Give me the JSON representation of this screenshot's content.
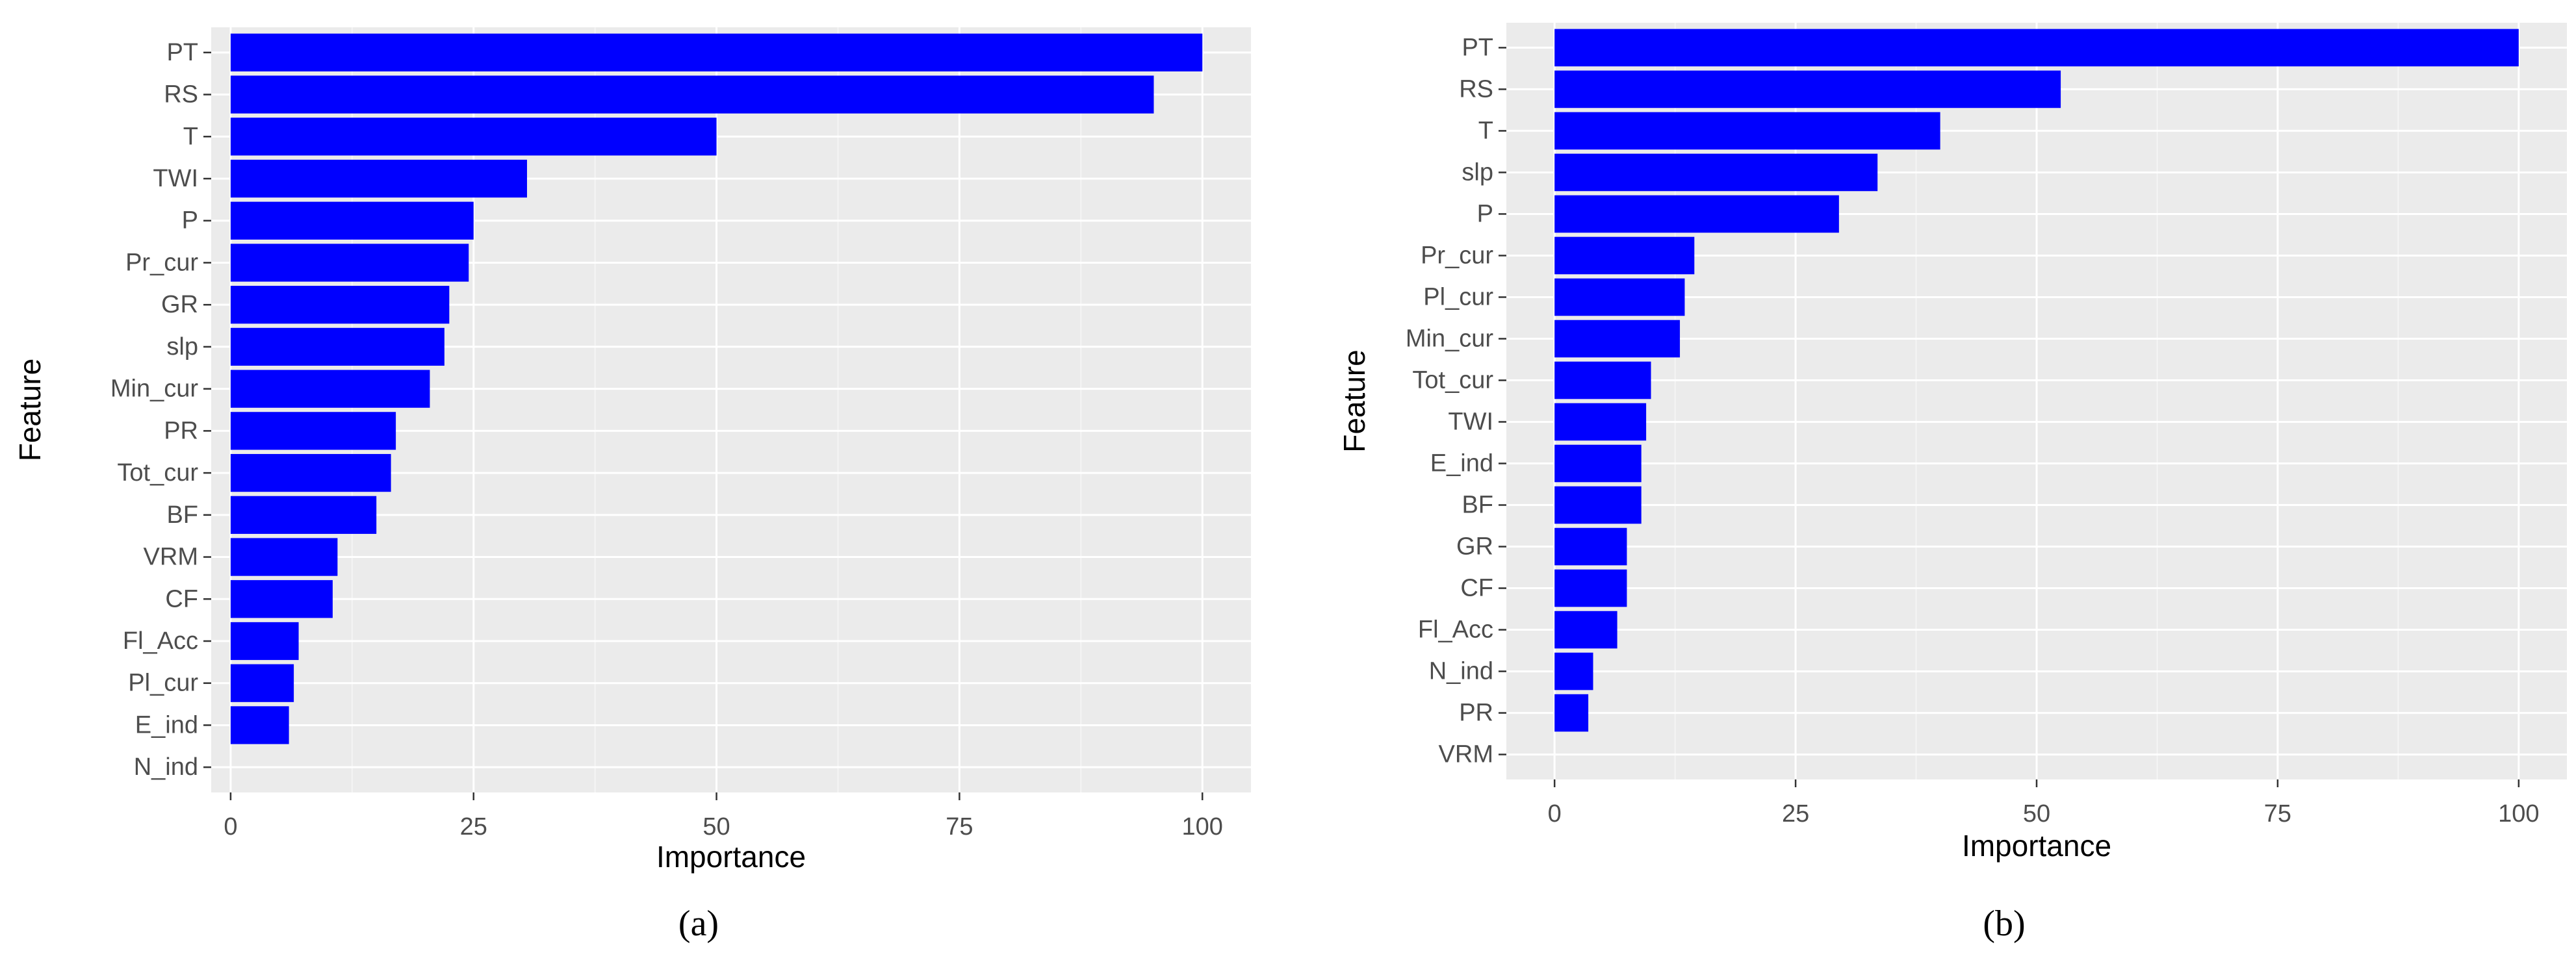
{
  "colors": {
    "bar": "#0000ff",
    "panel_bg": "#ebebeb",
    "grid_major": "#ffffff",
    "tick_text": "#4d4d4d",
    "axis_title": "#000000"
  },
  "chart_data": [
    {
      "type": "bar",
      "orientation": "horizontal",
      "caption": "(a)",
      "xlabel": "Importance",
      "ylabel": "Feature",
      "xlim": [
        -2,
        105
      ],
      "xticks": [
        0,
        25,
        50,
        75,
        100
      ],
      "grid": true,
      "categories": [
        "PT",
        "RS",
        "T",
        "TWI",
        "P",
        "Pr_cur",
        "GR",
        "slp",
        "Min_cur",
        "PR",
        "Tot_cur",
        "BF",
        "VRM",
        "CF",
        "Fl_Acc",
        "Pl_cur",
        "E_ind",
        "N_ind"
      ],
      "values": [
        100,
        95,
        50,
        30.5,
        25,
        24.5,
        22.5,
        22,
        20.5,
        17,
        16.5,
        15,
        11,
        10.5,
        7,
        6.5,
        6,
        0
      ]
    },
    {
      "type": "bar",
      "orientation": "horizontal",
      "caption": "(b)",
      "xlabel": "Importance",
      "ylabel": "Feature",
      "xlim": [
        -5,
        105
      ],
      "xticks": [
        0,
        25,
        50,
        75,
        100
      ],
      "grid": true,
      "categories": [
        "PT",
        "RS",
        "T",
        "slp",
        "P",
        "Pr_cur",
        "Pl_cur",
        "Min_cur",
        "Tot_cur",
        "TWI",
        "E_ind",
        "BF",
        "GR",
        "CF",
        "Fl_Acc",
        "N_ind",
        "PR",
        "VRM"
      ],
      "values": [
        100,
        52.5,
        40,
        33.5,
        29.5,
        14.5,
        13.5,
        13,
        10,
        9.5,
        9,
        9,
        7.5,
        7.5,
        6.5,
        4,
        3.5,
        0
      ]
    }
  ]
}
